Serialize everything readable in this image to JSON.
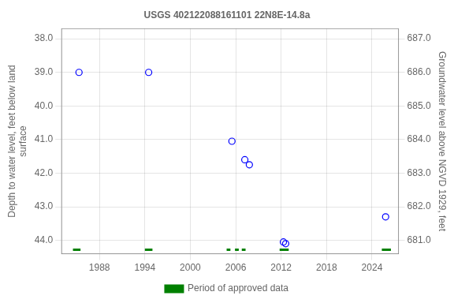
{
  "chart_data": {
    "type": "scatter",
    "title": "USGS 402122088161101 22N8E-14.8a",
    "x": [
      1985.3,
      1994.5,
      2005.5,
      2007.2,
      2007.8,
      2012.3,
      2012.6,
      2025.8
    ],
    "series": [
      {
        "values": [
          39.0,
          39.0,
          41.05,
          41.6,
          41.75,
          44.05,
          44.1,
          43.3
        ],
        "color": "blue",
        "marker": "circle"
      },
      {
        "name": "Period of approved data",
        "type": "line",
        "color": "#008000",
        "segments": [
          [
            1984.5,
            1985.5
          ],
          [
            1994.0,
            1995.0
          ],
          [
            2004.8,
            2005.3
          ],
          [
            2005.9,
            2006.4
          ],
          [
            2006.8,
            2007.3
          ],
          [
            2011.8,
            2013.0
          ],
          [
            2025.3,
            2026.5
          ]
        ],
        "level": 44.28
      }
    ],
    "xlim": [
      1983.0,
      2027.5
    ],
    "xticks": [
      1988,
      1994,
      2000,
      2006,
      2012,
      2018,
      2024
    ],
    "ylim": [
      44.4,
      37.7
    ],
    "yticks": [
      {
        "value": 38.0,
        "label": "38.0"
      },
      {
        "value": 39.0,
        "label": "39.0"
      },
      {
        "value": 40.0,
        "label": "40.0"
      },
      {
        "value": 41.0,
        "label": "41.0"
      },
      {
        "value": 42.0,
        "label": "42.0"
      },
      {
        "value": 43.0,
        "label": "43.0"
      },
      {
        "value": 44.0,
        "label": "44.0"
      }
    ],
    "y2lim": [
      680.6,
      687.3
    ],
    "y2ticks": [
      {
        "value": 687.0,
        "label": "687.0"
      },
      {
        "value": 686.0,
        "label": "686.0"
      },
      {
        "value": 685.0,
        "label": "685.0"
      },
      {
        "value": 684.0,
        "label": "684.0"
      },
      {
        "value": 683.0,
        "label": "683.0"
      },
      {
        "value": 682.0,
        "label": "682.0"
      },
      {
        "value": 681.0,
        "label": "681.0"
      }
    ],
    "ylabel": "Depth to water level, feet below land\nsurface",
    "y2label": "Groundwater level above NGVD 1929, feet",
    "grid": true,
    "legend": "bottom"
  }
}
